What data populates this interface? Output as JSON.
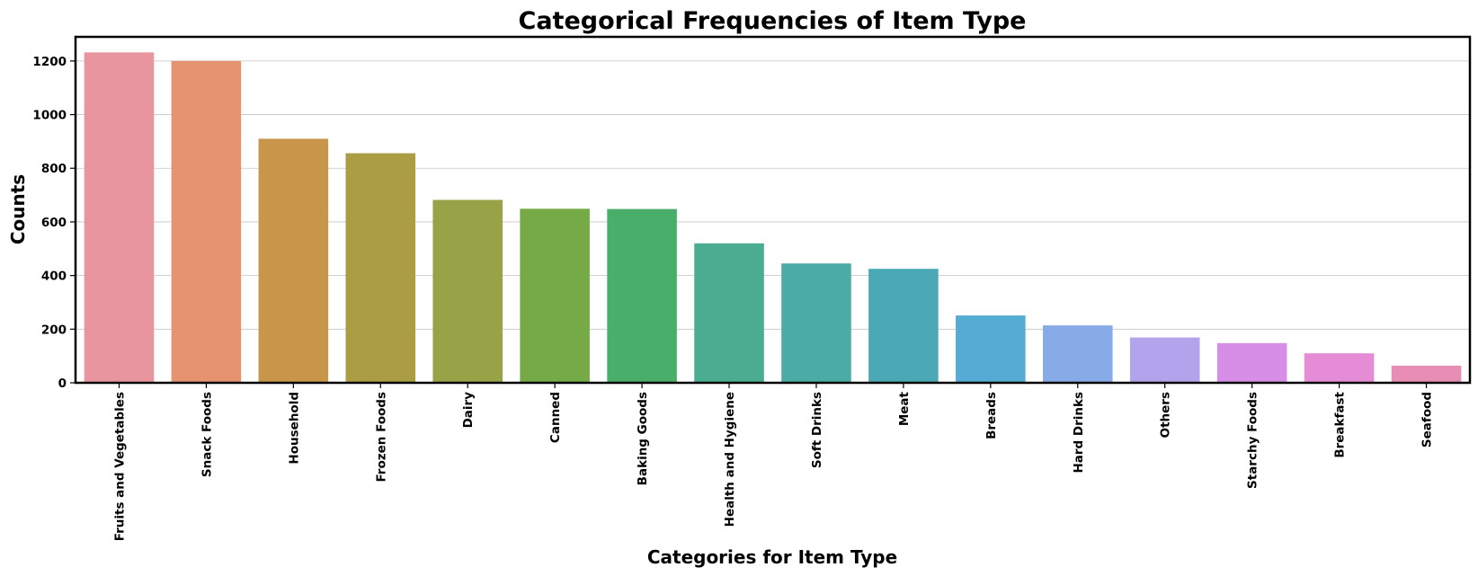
{
  "chart_data": {
    "type": "bar",
    "title": "Categorical Frequencies of Item Type",
    "xlabel": "Categories for Item Type",
    "ylabel": "Counts",
    "ylim": [
      0,
      1290
    ],
    "yticks": [
      0,
      200,
      400,
      600,
      800,
      1000,
      1200
    ],
    "grid": "horizontal",
    "categories": [
      "Fruits and Vegetables",
      "Snack Foods",
      "Household",
      "Frozen Foods",
      "Dairy",
      "Canned",
      "Baking Goods",
      "Health and Hygiene",
      "Soft Drinks",
      "Meat",
      "Breads",
      "Hard Drinks",
      "Others",
      "Starchy Foods",
      "Breakfast",
      "Seafood"
    ],
    "values": [
      1232,
      1200,
      910,
      856,
      682,
      649,
      648,
      520,
      445,
      425,
      251,
      214,
      169,
      148,
      110,
      64
    ],
    "colors": [
      "#e8959f",
      "#e5946f",
      "#c8964a",
      "#aa9d44",
      "#98a246",
      "#76aa47",
      "#4aae6b",
      "#4aad91",
      "#4aaca4",
      "#4aa9b4",
      "#54abd3",
      "#87abe6",
      "#b2a3ec",
      "#d68ee6",
      "#e68bd6",
      "#e88eb4"
    ]
  }
}
